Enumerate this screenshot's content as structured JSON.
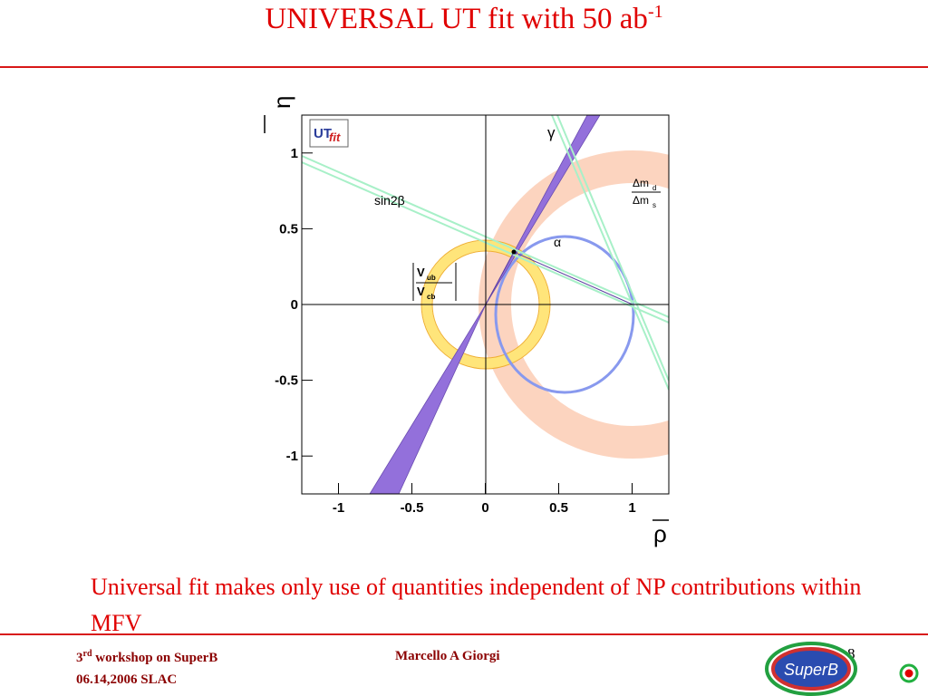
{
  "title": {
    "main": "UNIVERSAL UT fit with 50 ab",
    "sup": "-1"
  },
  "chart_data": {
    "type": "contour",
    "x_label": "ρ",
    "y_label": "η",
    "xlim": [
      -1.25,
      1.25
    ],
    "ylim": [
      -1.25,
      1.25
    ],
    "xticks": [
      -1,
      -0.5,
      0,
      0.5,
      1
    ],
    "yticks": [
      -1,
      -0.5,
      0,
      0.5,
      1
    ],
    "logo": {
      "main": "UT",
      "italic": "fit"
    },
    "annotations": {
      "sin2b": "sin2β",
      "gamma": "γ",
      "alpha": "α"
    },
    "dm_label": {
      "num": "Δm",
      "num_sub": "d",
      "den": "Δm",
      "den_sub": "s"
    },
    "v_label": {
      "num": "V",
      "num_sub": "ub",
      "den": "V",
      "den_sub": "cb"
    }
  },
  "caption": "Universal fit makes only use  of quantities independent of NP contributions within MFV",
  "footer": {
    "ordinal": "3",
    "ordinal_sup": "rd",
    "event": " workshop on SuperB",
    "date": "06.14,2006 SLAC",
    "author": "Marcello A Giorgi",
    "page": "8",
    "logo": "SuperB"
  }
}
